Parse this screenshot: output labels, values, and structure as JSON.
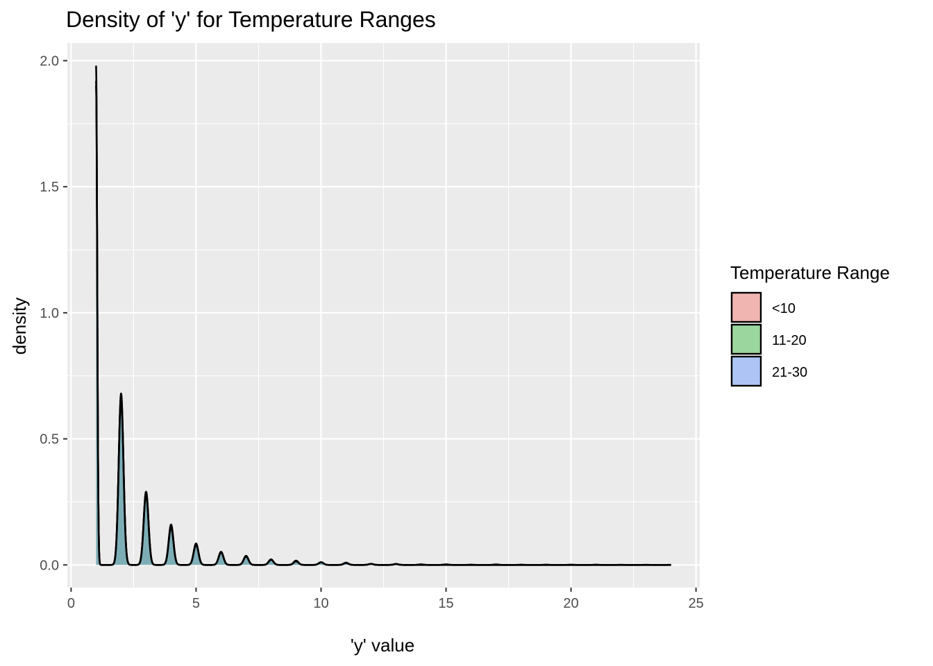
{
  "chart_data": {
    "type": "area",
    "title": "Density of 'y' for Temperature Ranges",
    "xlabel": "'y' value",
    "ylabel": "density",
    "xlim": [
      -0.15,
      25.15
    ],
    "ylim": [
      -0.09,
      2.07
    ],
    "x_ticks": [
      0,
      5,
      10,
      15,
      20,
      25
    ],
    "x_tick_labels": [
      "0",
      "5",
      "10",
      "15",
      "20",
      "25"
    ],
    "y_ticks": [
      0.0,
      0.5,
      1.0,
      1.5,
      2.0
    ],
    "y_tick_labels": [
      "0.0",
      "0.5",
      "1.0",
      "1.5",
      "2.0"
    ],
    "grid": true,
    "legend": {
      "title": "Temperature Range",
      "position": "right",
      "entries": [
        {
          "label": "<10",
          "color": "#F0B5B1"
        },
        {
          "label": "11-20",
          "color": "#9BD69F"
        },
        {
          "label": "21-30",
          "color": "#AEC4F5"
        }
      ]
    },
    "series": [
      {
        "name": "<10",
        "fill": "#F8766D",
        "peaks": [
          {
            "x": 1,
            "y": 1.98
          },
          {
            "x": 2,
            "y": 0.68
          },
          {
            "x": 3,
            "y": 0.29
          },
          {
            "x": 4,
            "y": 0.16
          },
          {
            "x": 5,
            "y": 0.085
          },
          {
            "x": 6,
            "y": 0.052
          },
          {
            "x": 7,
            "y": 0.036
          },
          {
            "x": 8,
            "y": 0.022
          },
          {
            "x": 9,
            "y": 0.017
          },
          {
            "x": 10,
            "y": 0.011
          },
          {
            "x": 11,
            "y": 0.009
          },
          {
            "x": 12,
            "y": 0.004
          },
          {
            "x": 13,
            "y": 0.004
          },
          {
            "x": 14,
            "y": 0.002
          },
          {
            "x": 15,
            "y": 0.002
          },
          {
            "x": 16,
            "y": 0.001
          },
          {
            "x": 17,
            "y": 0.002
          },
          {
            "x": 18,
            "y": 0.001
          },
          {
            "x": 19,
            "y": 0.001
          },
          {
            "x": 20,
            "y": 0.001
          },
          {
            "x": 21,
            "y": 0.001
          },
          {
            "x": 22,
            "y": 0.0005
          },
          {
            "x": 23,
            "y": 0.0005
          },
          {
            "x": 24,
            "y": 0.0005
          }
        ]
      },
      {
        "name": "11-20",
        "fill": "#00BA38",
        "peaks": [
          {
            "x": 1,
            "y": 1.9
          },
          {
            "x": 2,
            "y": 0.67
          },
          {
            "x": 3,
            "y": 0.29
          },
          {
            "x": 4,
            "y": 0.15
          },
          {
            "x": 5,
            "y": 0.08
          },
          {
            "x": 6,
            "y": 0.05
          },
          {
            "x": 7,
            "y": 0.033
          },
          {
            "x": 8,
            "y": 0.02
          },
          {
            "x": 9,
            "y": 0.014
          },
          {
            "x": 10,
            "y": 0.01
          },
          {
            "x": 11,
            "y": 0.007
          },
          {
            "x": 12,
            "y": 0.004
          },
          {
            "x": 13,
            "y": 0.003
          },
          {
            "x": 14,
            "y": 0.002
          },
          {
            "x": 15,
            "y": 0.002
          }
        ]
      },
      {
        "name": "21-30",
        "fill": "#619CFF",
        "peaks": [
          {
            "x": 1,
            "y": 1.92
          },
          {
            "x": 2,
            "y": 0.66
          },
          {
            "x": 3,
            "y": 0.28
          },
          {
            "x": 4,
            "y": 0.15
          },
          {
            "x": 5,
            "y": 0.08
          },
          {
            "x": 6,
            "y": 0.05
          },
          {
            "x": 7,
            "y": 0.034
          },
          {
            "x": 8,
            "y": 0.021
          },
          {
            "x": 9,
            "y": 0.015
          },
          {
            "x": 10,
            "y": 0.01
          },
          {
            "x": 11,
            "y": 0.008
          },
          {
            "x": 12,
            "y": 0.004
          },
          {
            "x": 13,
            "y": 0.003
          }
        ]
      }
    ]
  }
}
